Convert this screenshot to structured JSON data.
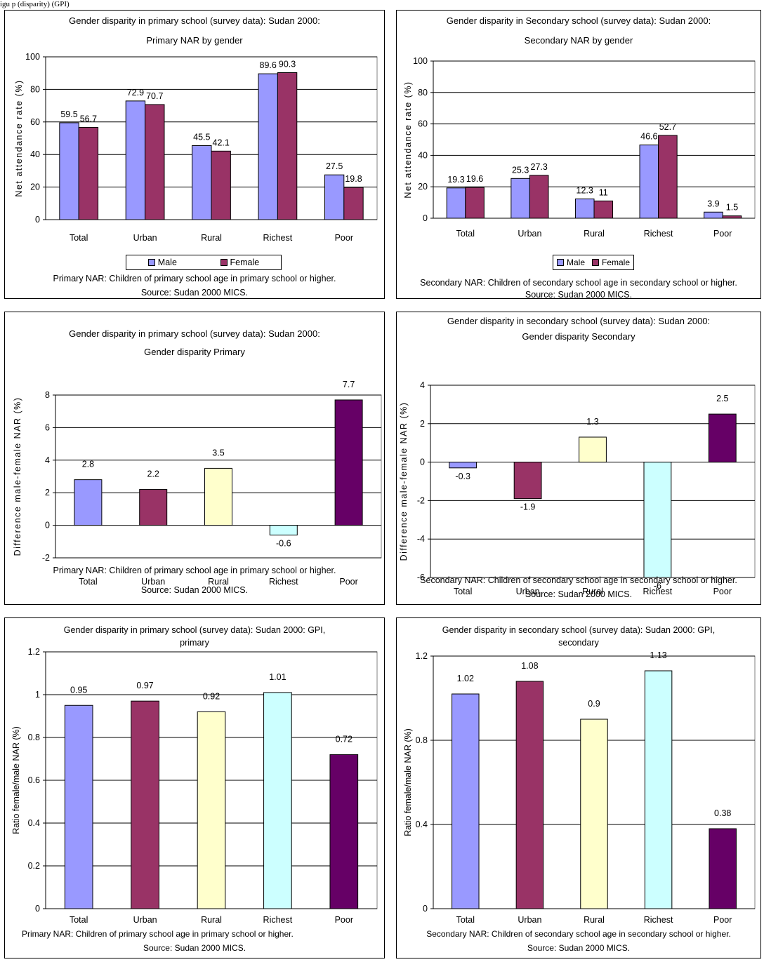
{
  "caption": "igu                       p (disparity)                                                    (GPI)",
  "panels": [
    {
      "id": "p1",
      "title1": "Gender disparity in primary school (survey data): Sudan 2000:",
      "title2": "Primary NAR by gender",
      "foot1": "Primary NAR: Children of primary school age in primary school or higher.",
      "foot2": "Source: Sudan 2000 MICS.",
      "legend": [
        "Male",
        "Female"
      ]
    },
    {
      "id": "p2",
      "title1": "Gender disparity in Secondary school (survey data): Sudan 2000:",
      "title2": "Secondary NAR by gender",
      "foot1": "Secondary NAR: Children of secondary school age in secondary school or higher.",
      "foot2": "Source: Sudan 2000 MICS.",
      "legend": [
        "Male",
        "Female"
      ]
    },
    {
      "id": "p3",
      "title1": "Gender disparity in primary school (survey data): Sudan 2000:",
      "title2": "Gender disparity Primary",
      "foot1": "Primary NAR: Children of primary school age in primary school or higher.",
      "foot2": "Source: Sudan 2000 MICS."
    },
    {
      "id": "p4",
      "title1": "Gender disparity in secondary school (survey data): Sudan 2000:",
      "title2": "Gender disparity Secondary",
      "foot1": "Secondary NAR: Children of secondary school age in secondary school or higher.",
      "foot2": "Source: Sudan 2000 MICS."
    },
    {
      "id": "p5",
      "title1": "Gender disparity in primary school (survey data): Sudan 2000: GPI,",
      "title2": "primary",
      "foot1": "Primary NAR: Children of primary school age in primary school or higher.",
      "foot2": "Source: Sudan 2000 MICS."
    },
    {
      "id": "p6",
      "title1": "Gender disparity in secondary school (survey data): Sudan 2000: GPI,",
      "title2": "secondary",
      "foot1": "Secondary NAR: Children of secondary school age in secondary school or higher.",
      "foot2": "Source: Sudan 2000 MICS."
    }
  ],
  "chart_data": [
    {
      "type": "bar",
      "categories": [
        "Total",
        "Urban",
        "Rural",
        "Richest",
        "Poor"
      ],
      "series": [
        {
          "name": "Male",
          "values": [
            59.5,
            72.9,
            45.5,
            89.6,
            27.5
          ],
          "color": "#9999ff"
        },
        {
          "name": "Female",
          "values": [
            56.7,
            70.7,
            42.1,
            90.3,
            19.8
          ],
          "color": "#993366"
        }
      ],
      "ylabel": "Net attendance rate (%)",
      "ylim": [
        0,
        100
      ],
      "yticks": [
        0,
        20,
        40,
        60,
        80,
        100
      ],
      "grid": true,
      "legend": "bottom"
    },
    {
      "type": "bar",
      "categories": [
        "Total",
        "Urban",
        "Rural",
        "Richest",
        "Poor"
      ],
      "series": [
        {
          "name": "Male",
          "values": [
            19.3,
            25.3,
            12.3,
            46.6,
            3.9
          ],
          "color": "#9999ff"
        },
        {
          "name": "Female",
          "values": [
            19.6,
            27.3,
            11,
            52.7,
            1.5
          ],
          "color": "#993366"
        }
      ],
      "ylabel": "Net attendance rate (%)",
      "ylim": [
        0,
        100
      ],
      "yticks": [
        0,
        20,
        40,
        60,
        80,
        100
      ],
      "grid": true,
      "legend": "bottom"
    },
    {
      "type": "bar",
      "categories": [
        "Total",
        "Urban",
        "Rural",
        "Richest",
        "Poor"
      ],
      "values": [
        2.8,
        2.2,
        3.5,
        -0.6,
        7.7
      ],
      "colors": [
        "#9999ff",
        "#993366",
        "#ffffcc",
        "#ccffff",
        "#660066"
      ],
      "ylabel": "Difference male-female NAR (%)",
      "ylim": [
        -2,
        8
      ],
      "yticks": [
        -2,
        0,
        2,
        4,
        6,
        8
      ],
      "grid": true
    },
    {
      "type": "bar",
      "categories": [
        "Total",
        "Urban",
        "Rural",
        "Richest",
        "Poor"
      ],
      "values": [
        -0.3,
        -1.9,
        1.3,
        -6,
        2.5
      ],
      "colors": [
        "#9999ff",
        "#993366",
        "#ffffcc",
        "#ccffff",
        "#660066"
      ],
      "ylabel": "Difference male-female NAR (%)",
      "ylim": [
        -6,
        4
      ],
      "yticks": [
        -6,
        -4,
        -2,
        0,
        2,
        4
      ],
      "grid": true
    },
    {
      "type": "bar",
      "categories": [
        "Total",
        "Urban",
        "Rural",
        "Richest",
        "Poor"
      ],
      "values": [
        0.95,
        0.97,
        0.92,
        1.01,
        0.72
      ],
      "colors": [
        "#9999ff",
        "#993366",
        "#ffffcc",
        "#ccffff",
        "#660066"
      ],
      "ylabel": "Ratio female/male NAR (%)",
      "ylim": [
        0,
        1.2
      ],
      "yticks": [
        0,
        0.2,
        0.4,
        0.6,
        0.8,
        1,
        1.2
      ],
      "grid": true
    },
    {
      "type": "bar",
      "categories": [
        "Total",
        "Urban",
        "Rural",
        "Richest",
        "Poor"
      ],
      "values": [
        1.02,
        1.08,
        0.9,
        1.13,
        0.38
      ],
      "colors": [
        "#9999ff",
        "#993366",
        "#ffffcc",
        "#ccffff",
        "#660066"
      ],
      "ylabel": "Ratio female/male NAR (%)",
      "ylim": [
        0,
        1.2
      ],
      "yticks": [
        0,
        0.4,
        0.8,
        1.2
      ],
      "grid": true
    }
  ]
}
